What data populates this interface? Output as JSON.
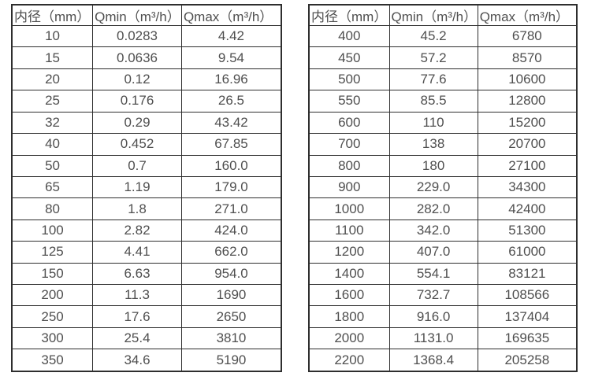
{
  "colors": {
    "border": "#2e2e2e",
    "text": "#4f4f4f",
    "background": "#ffffff"
  },
  "tables": [
    {
      "name": "flow-spec-table-small-diameters",
      "headers": [
        "内径（mm）",
        "Qmin（m³/h）",
        "Qmax（m³/h）"
      ],
      "rows": [
        [
          "10",
          "0.0283",
          "4.42"
        ],
        [
          "15",
          "0.0636",
          "9.54"
        ],
        [
          "20",
          "0.12",
          "16.96"
        ],
        [
          "25",
          "0.176",
          "26.5"
        ],
        [
          "32",
          "0.29",
          "43.42"
        ],
        [
          "40",
          "0.452",
          "67.85"
        ],
        [
          "50",
          "0.7",
          "160.0"
        ],
        [
          "65",
          "1.19",
          "179.0"
        ],
        [
          "80",
          "1.8",
          "271.0"
        ],
        [
          "100",
          "2.82",
          "424.0"
        ],
        [
          "125",
          "4.41",
          "662.0"
        ],
        [
          "150",
          "6.63",
          "954.0"
        ],
        [
          "200",
          "11.3",
          "1690"
        ],
        [
          "250",
          "17.6",
          "2650"
        ],
        [
          "300",
          "25.4",
          "3810"
        ],
        [
          "350",
          "34.6",
          "5190"
        ]
      ]
    },
    {
      "name": "flow-spec-table-large-diameters",
      "headers": [
        "内径（mm）",
        "Qmin（m³/h）",
        "Qmax（m³/h）"
      ],
      "rows": [
        [
          "400",
          "45.2",
          "6780"
        ],
        [
          "450",
          "57.2",
          "8570"
        ],
        [
          "500",
          "77.6",
          "10600"
        ],
        [
          "550",
          "85.5",
          "12800"
        ],
        [
          "600",
          "110",
          "15200"
        ],
        [
          "700",
          "138",
          "20700"
        ],
        [
          "800",
          "180",
          "27100"
        ],
        [
          "900",
          "229.0",
          "34300"
        ],
        [
          "1000",
          "282.0",
          "42400"
        ],
        [
          "1100",
          "342.0",
          "51300"
        ],
        [
          "1200",
          "407.0",
          "61000"
        ],
        [
          "1400",
          "554.1",
          "83121"
        ],
        [
          "1600",
          "732.7",
          "108566"
        ],
        [
          "1800",
          "916.0",
          "137404"
        ],
        [
          "2000",
          "1131.0",
          "169635"
        ],
        [
          "2200",
          "1368.4",
          "205258"
        ]
      ]
    }
  ]
}
